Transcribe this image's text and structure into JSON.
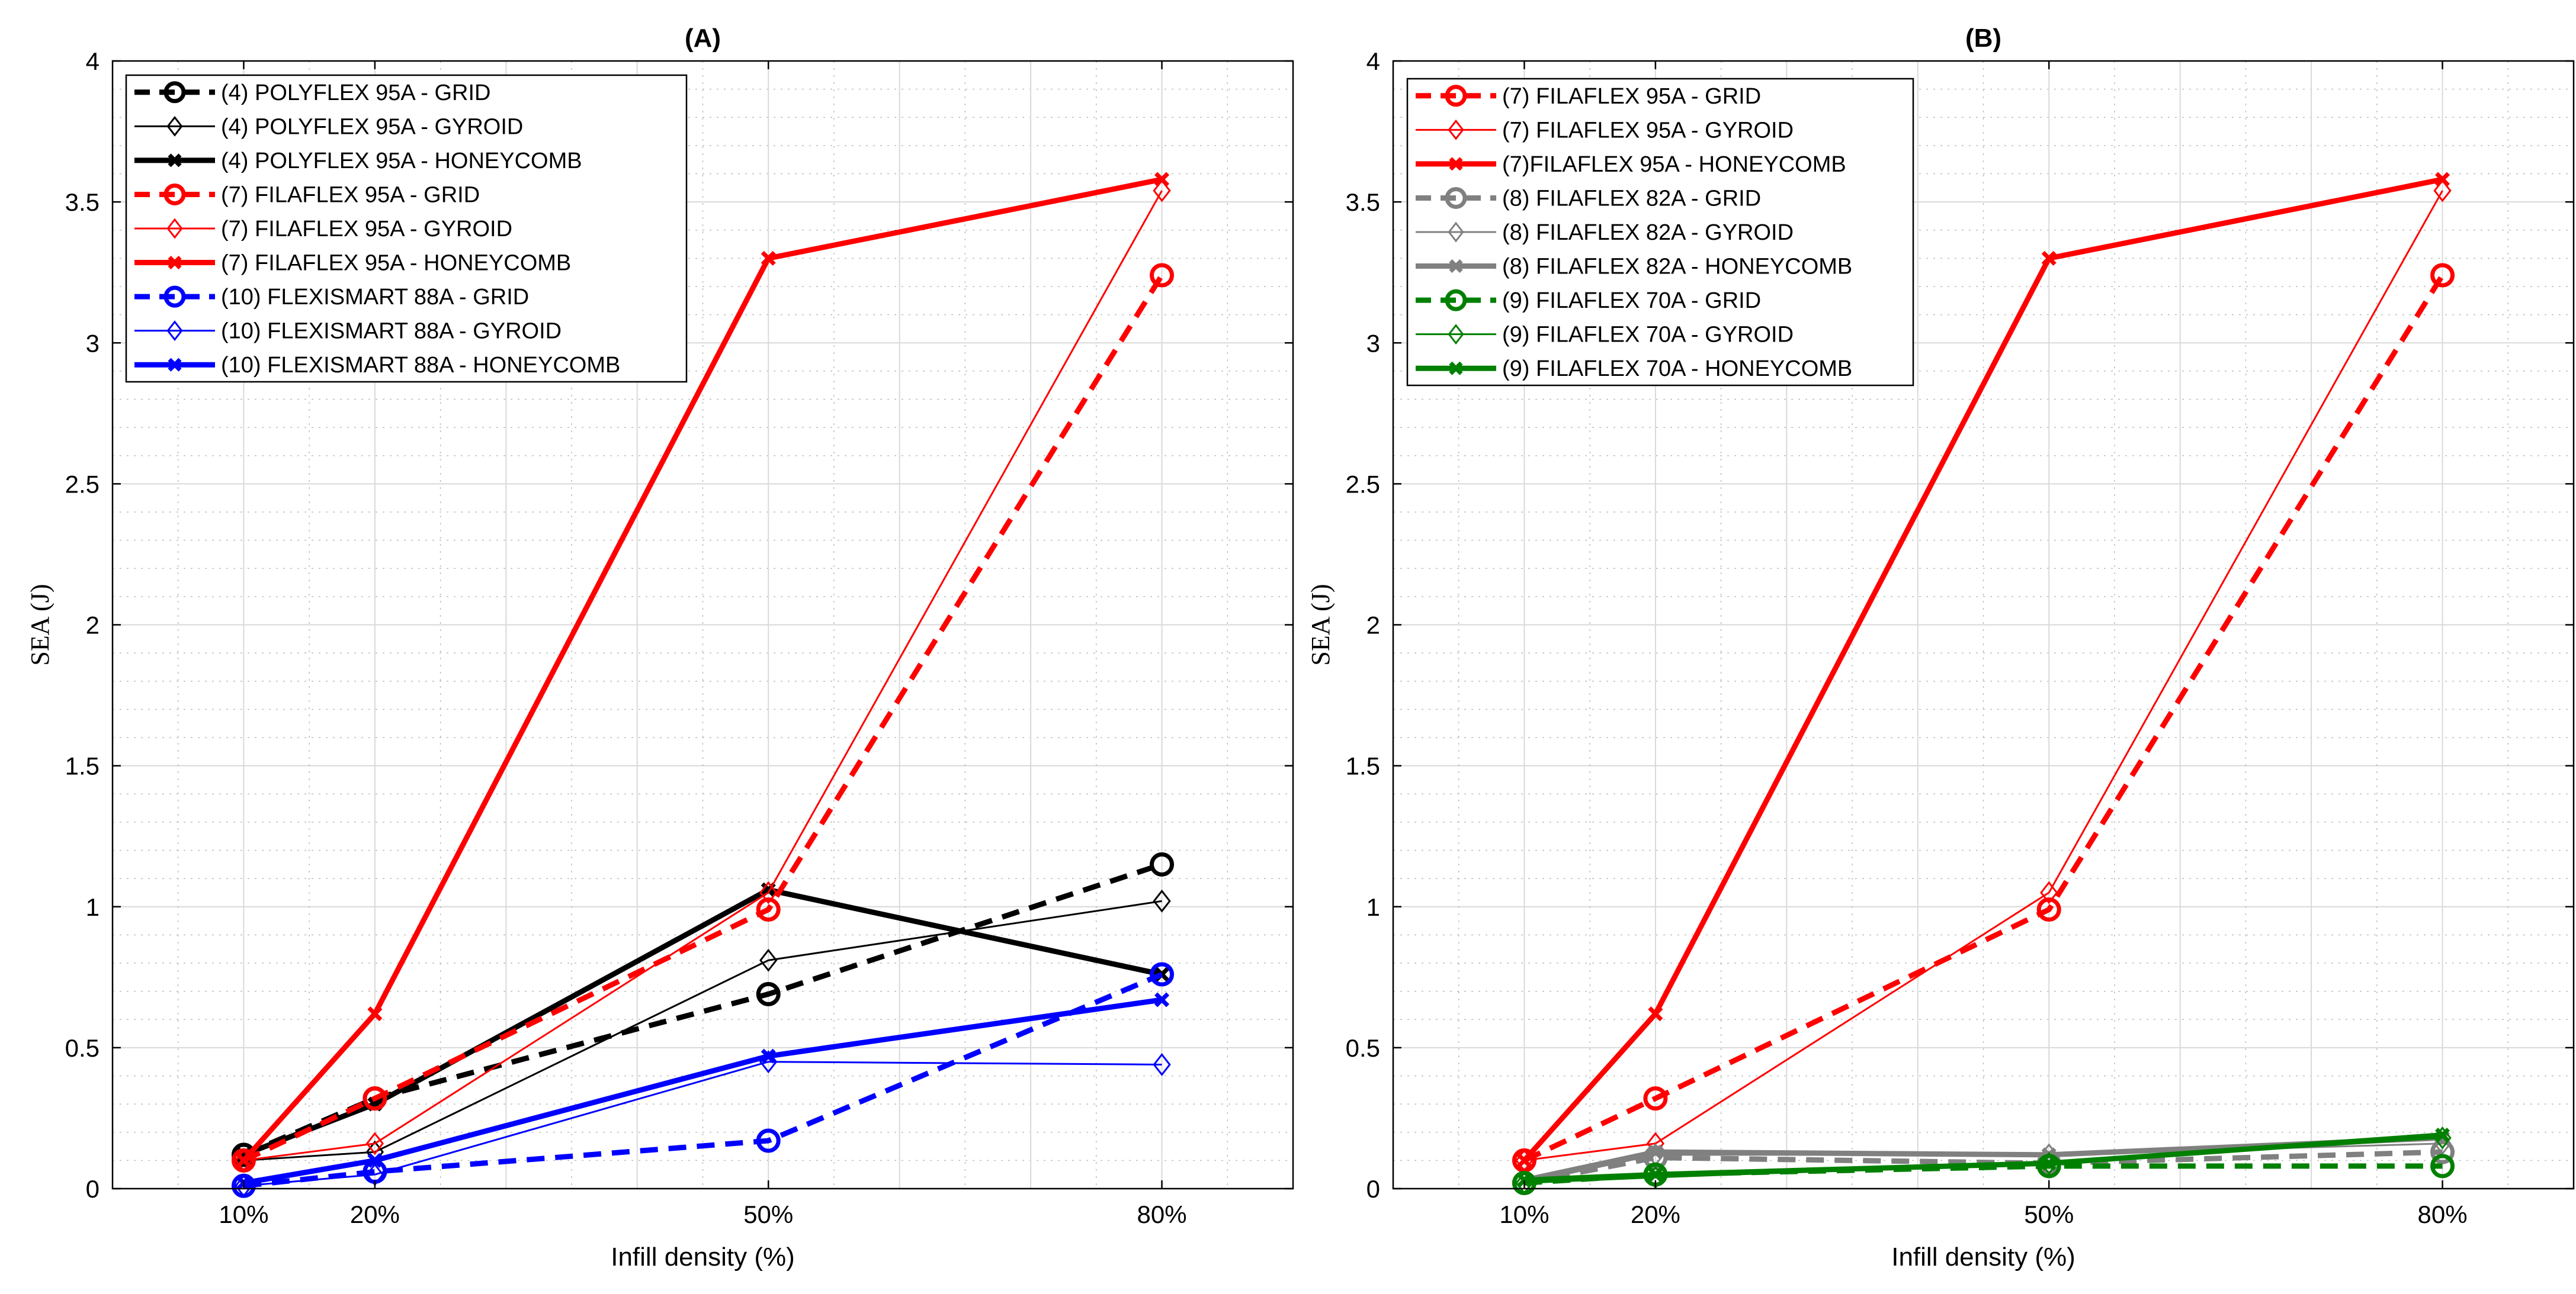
{
  "chart_data": [
    {
      "type": "line",
      "title": "(A)",
      "xlabel": "Infill density (%)",
      "ylabel": "SEA  (J)",
      "x": [
        10,
        20,
        50,
        80
      ],
      "x_tick_labels": [
        "10%",
        "20%",
        "50%",
        "80%"
      ],
      "xlim": [
        0,
        90
      ],
      "ylim": [
        0,
        4
      ],
      "y_ticks": [
        0,
        0.5,
        1,
        1.5,
        2,
        2.5,
        3,
        3.5,
        4
      ],
      "y_tick_labels": [
        "0",
        "0.5",
        "1",
        "1.5",
        "2",
        "2.5",
        "3",
        "3.5",
        "4"
      ],
      "grid": true,
      "legend_position": "top-left",
      "series": [
        {
          "name": "(4) POLYFLEX 95A - GRID",
          "color": "#000000",
          "dash": "dashed",
          "marker": "circle",
          "weight": "thick",
          "values": [
            0.12,
            0.32,
            0.69,
            1.15
          ]
        },
        {
          "name": "(4) POLYFLEX 95A - GYROID",
          "color": "#000000",
          "dash": "solid",
          "marker": "diamond",
          "weight": "thin",
          "values": [
            0.1,
            0.13,
            0.81,
            1.02
          ]
        },
        {
          "name": "(4) POLYFLEX 95A - HONEYCOMB",
          "color": "#000000",
          "dash": "solid",
          "marker": "x",
          "weight": "thick",
          "values": [
            0.12,
            0.3,
            1.06,
            0.76
          ]
        },
        {
          "name": "(7) FILAFLEX 95A - GRID",
          "color": "#ff0000",
          "dash": "dashed",
          "marker": "circle",
          "weight": "thick",
          "values": [
            0.1,
            0.32,
            0.99,
            3.24
          ]
        },
        {
          "name": "(7) FILAFLEX 95A - GYROID",
          "color": "#ff0000",
          "dash": "solid",
          "marker": "diamond",
          "weight": "thin",
          "values": [
            0.1,
            0.16,
            1.05,
            3.54
          ]
        },
        {
          "name": "(7) FILAFLEX 95A - HONEYCOMB",
          "color": "#ff0000",
          "dash": "solid",
          "marker": "x",
          "weight": "thick",
          "values": [
            0.1,
            0.62,
            3.3,
            3.58
          ]
        },
        {
          "name": "(10) FLEXISMART 88A - GRID",
          "color": "#0000ff",
          "dash": "dashed",
          "marker": "circle",
          "weight": "thick",
          "values": [
            0.01,
            0.06,
            0.17,
            0.76
          ]
        },
        {
          "name": "(10) FLEXISMART 88A - GYROID",
          "color": "#0000ff",
          "dash": "solid",
          "marker": "diamond",
          "weight": "thin",
          "values": [
            0.01,
            0.05,
            0.45,
            0.44
          ]
        },
        {
          "name": "(10) FLEXISMART 88A - HONEYCOMB",
          "color": "#0000ff",
          "dash": "solid",
          "marker": "x",
          "weight": "thick",
          "values": [
            0.02,
            0.1,
            0.47,
            0.67
          ]
        }
      ]
    },
    {
      "type": "line",
      "title": "(B)",
      "xlabel": "Infill density (%)",
      "ylabel": "SEA  (J)",
      "x": [
        10,
        20,
        50,
        80
      ],
      "x_tick_labels": [
        "10%",
        "20%",
        "50%",
        "80%"
      ],
      "xlim": [
        0,
        90
      ],
      "ylim": [
        0,
        4
      ],
      "y_ticks": [
        0,
        0.5,
        1,
        1.5,
        2,
        2.5,
        3,
        3.5,
        4
      ],
      "y_tick_labels": [
        "0",
        "0.5",
        "1",
        "1.5",
        "2",
        "2.5",
        "3",
        "3.5",
        "4"
      ],
      "grid": true,
      "legend_position": "top-left",
      "series": [
        {
          "name": "(7) FILAFLEX 95A - GRID",
          "color": "#ff0000",
          "dash": "dashed",
          "marker": "circle",
          "weight": "thick",
          "values": [
            0.1,
            0.32,
            0.99,
            3.24
          ]
        },
        {
          "name": "(7) FILAFLEX 95A - GYROID",
          "color": "#ff0000",
          "dash": "solid",
          "marker": "diamond",
          "weight": "thin",
          "values": [
            0.1,
            0.16,
            1.05,
            3.54
          ]
        },
        {
          "name": "(7)FILAFLEX 95A - HONEYCOMB",
          "color": "#ff0000",
          "dash": "solid",
          "marker": "x",
          "weight": "thick",
          "values": [
            0.1,
            0.62,
            3.3,
            3.58
          ]
        },
        {
          "name": "(8) FILAFLEX 82A - GRID",
          "color": "#808080",
          "dash": "dashed",
          "marker": "circle",
          "weight": "thick",
          "values": [
            0.02,
            0.11,
            0.09,
            0.13
          ]
        },
        {
          "name": "(8) FILAFLEX 82A - GYROID",
          "color": "#808080",
          "dash": "solid",
          "marker": "diamond",
          "weight": "thin",
          "values": [
            0.02,
            0.12,
            0.12,
            0.16
          ]
        },
        {
          "name": "(8) FILAFLEX 82A - HONEYCOMB",
          "color": "#808080",
          "dash": "solid",
          "marker": "x",
          "weight": "thick",
          "values": [
            0.03,
            0.13,
            0.12,
            0.18
          ]
        },
        {
          "name": "(9) FILAFLEX 70A - GRID",
          "color": "#008000",
          "dash": "dashed",
          "marker": "circle",
          "weight": "thick",
          "values": [
            0.02,
            0.05,
            0.08,
            0.08
          ]
        },
        {
          "name": "(9) FILAFLEX 70A - GYROID",
          "color": "#008000",
          "dash": "solid",
          "marker": "diamond",
          "weight": "thin",
          "values": [
            0.02,
            0.04,
            0.09,
            0.18
          ]
        },
        {
          "name": "(9) FILAFLEX 70A - HONEYCOMB",
          "color": "#008000",
          "dash": "solid",
          "marker": "x",
          "weight": "thick",
          "values": [
            0.03,
            0.05,
            0.09,
            0.19
          ]
        }
      ]
    }
  ]
}
